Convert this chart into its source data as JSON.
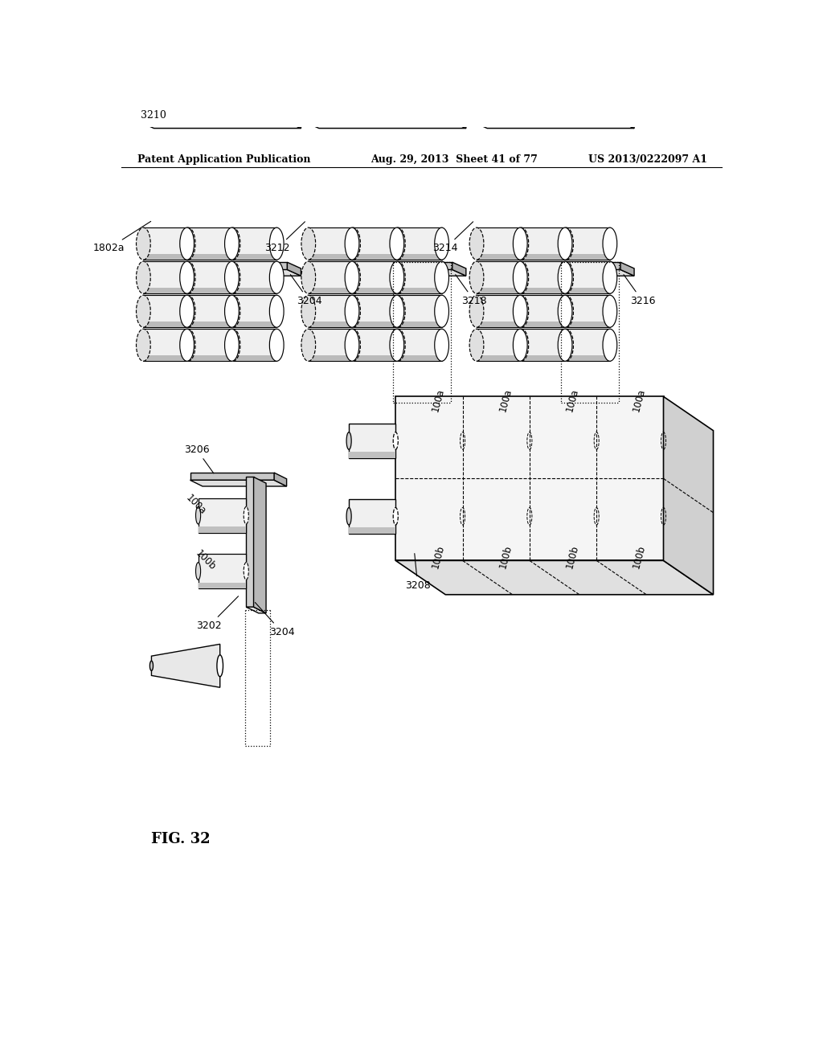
{
  "bg_color": "#ffffff",
  "header_left": "Patent Application Publication",
  "header_mid": "Aug. 29, 2013  Sheet 41 of 77",
  "header_right": "US 2013/0222097 A1",
  "fig_label": "FIG. 32"
}
